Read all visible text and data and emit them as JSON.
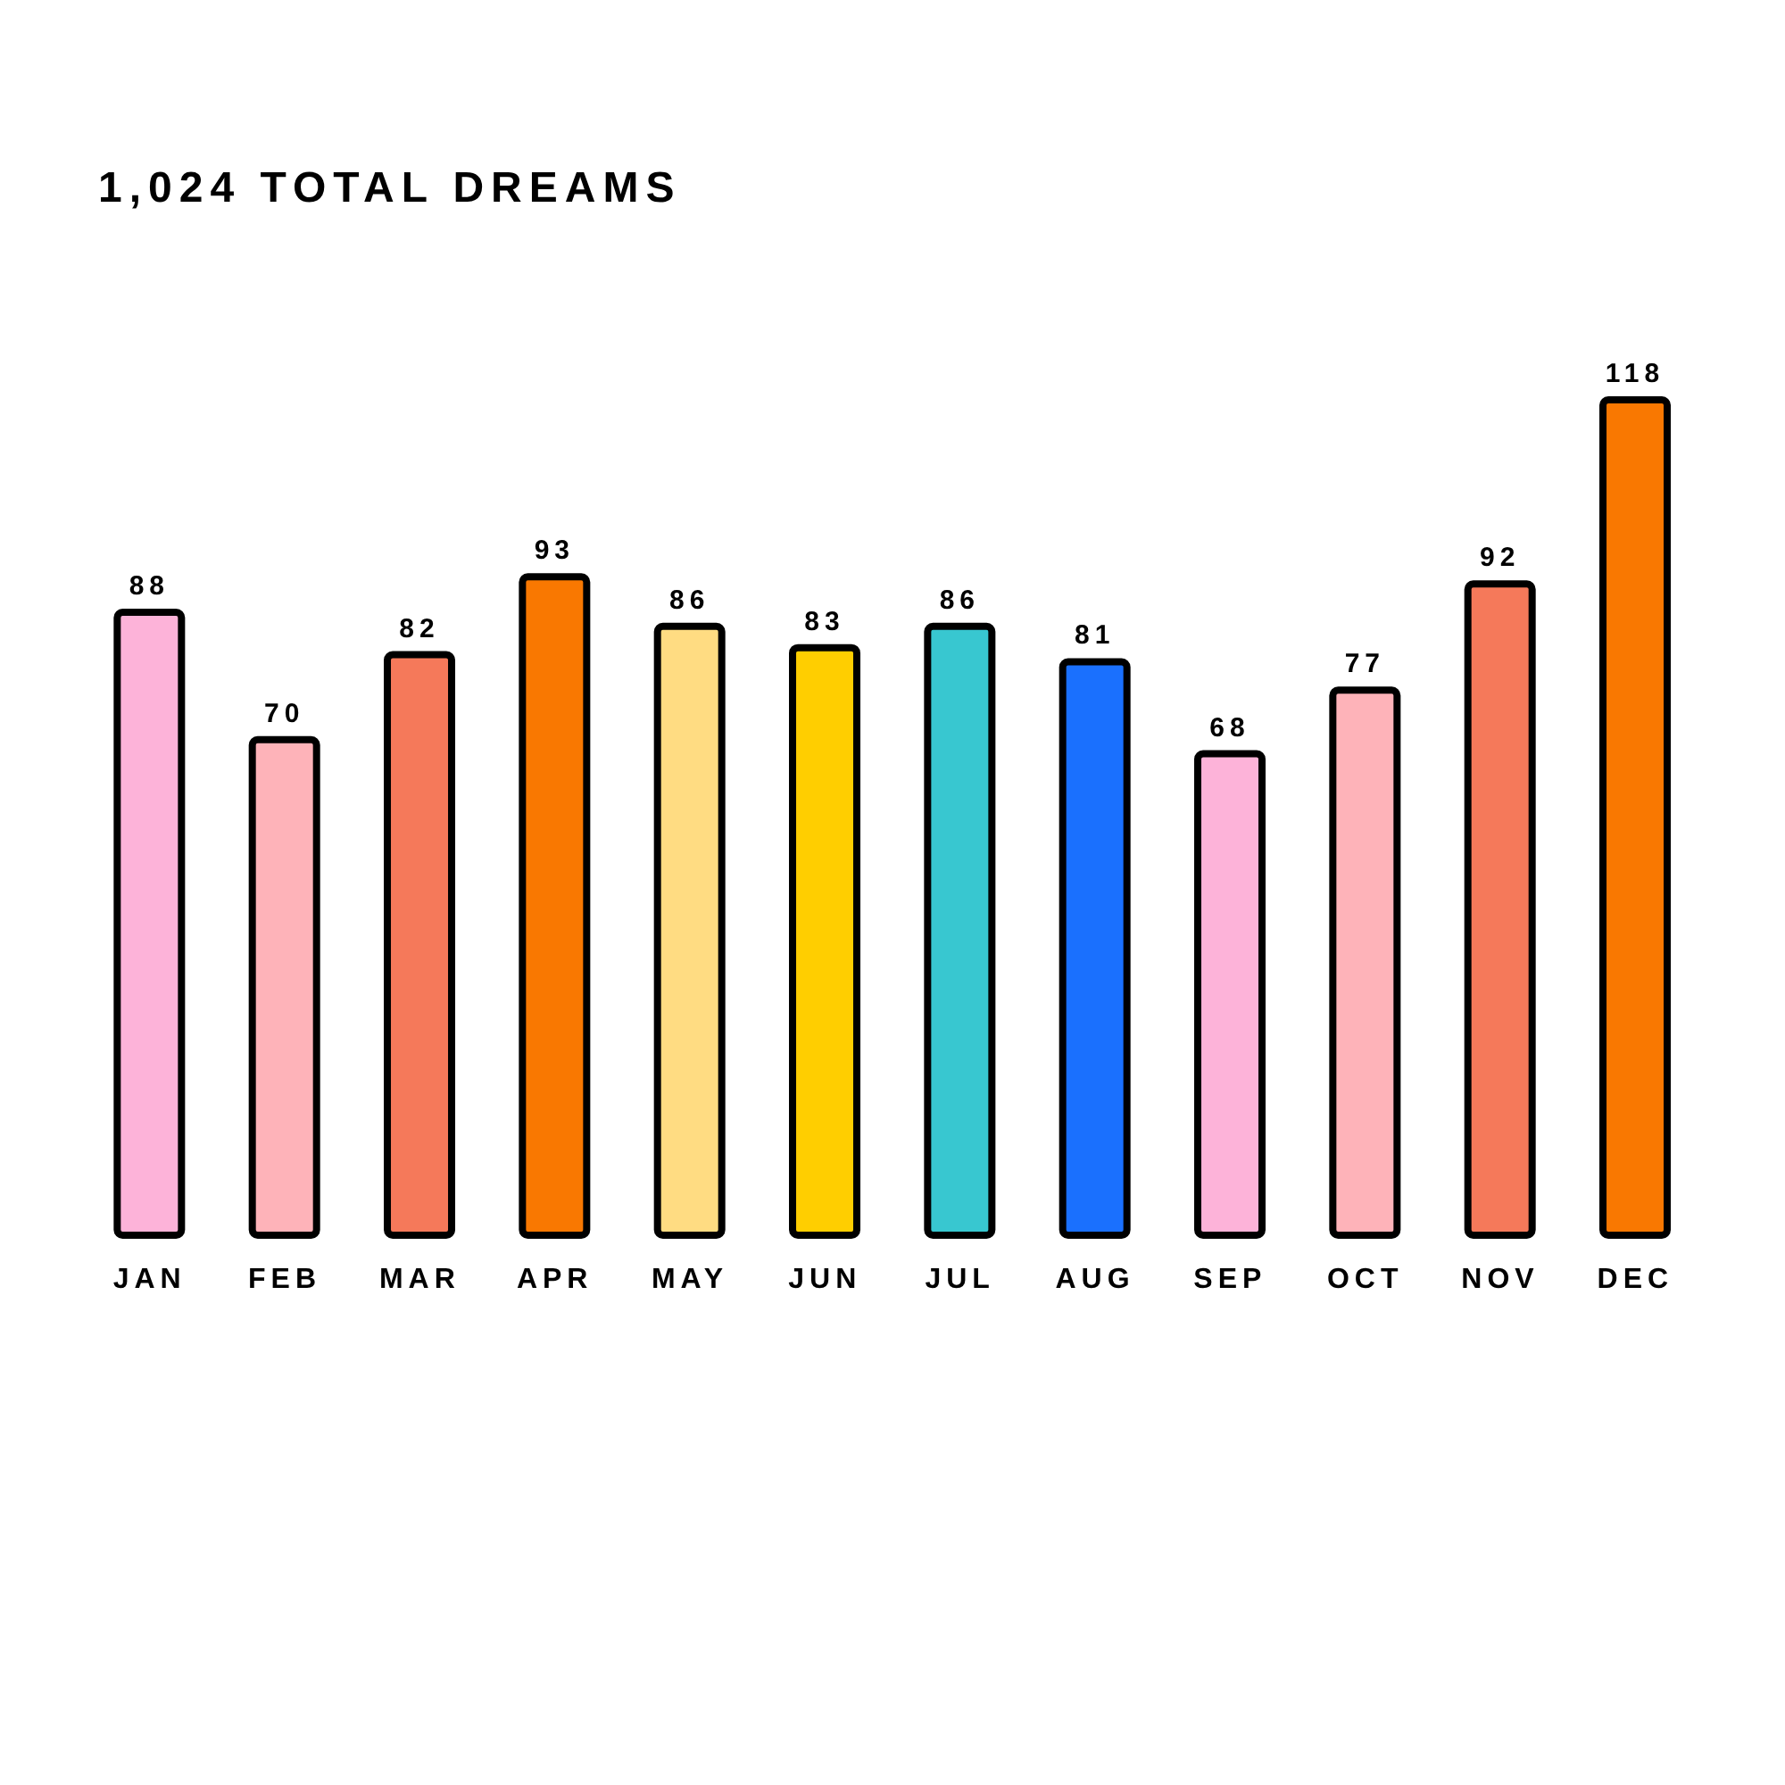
{
  "chart_data": {
    "type": "bar",
    "title": "1,024 TOTAL DREAMS",
    "categories": [
      "JAN",
      "FEB",
      "MAR",
      "APR",
      "MAY",
      "JUN",
      "JUL",
      "AUG",
      "SEP",
      "OCT",
      "NOV",
      "DEC"
    ],
    "values": [
      88,
      70,
      82,
      93,
      86,
      83,
      86,
      81,
      68,
      77,
      92,
      118
    ],
    "colors": [
      "#fdb3d9",
      "#feb3b9",
      "#f5795a",
      "#f97801",
      "#ffdc82",
      "#ffce00",
      "#38c7d0",
      "#1a70fe",
      "#fdb3d9",
      "#feb3b9",
      "#f5795a",
      "#f97801"
    ],
    "data_labels": true
  }
}
